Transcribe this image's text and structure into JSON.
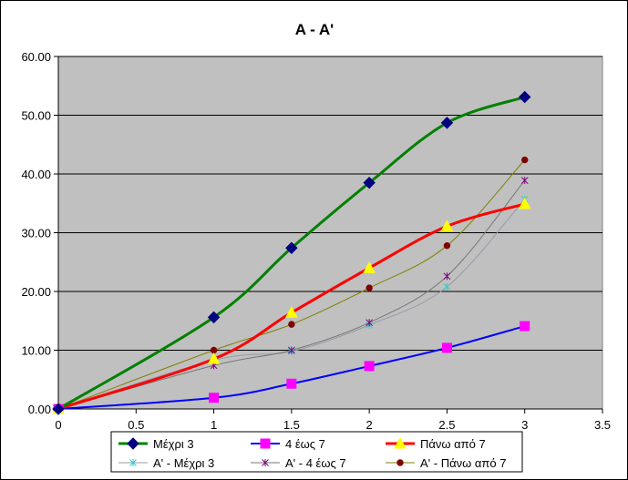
{
  "chart_data": {
    "type": "line",
    "title": "A - A'",
    "xlabel": "",
    "ylabel": "",
    "xlim": [
      0,
      3.5
    ],
    "ylim": [
      0,
      60
    ],
    "x_ticks": [
      "0",
      "0.5",
      "1",
      "1.5",
      "2",
      "2.5",
      "3",
      "3.5"
    ],
    "y_ticks": [
      "0.00",
      "10.00",
      "20.00",
      "30.00",
      "40.00",
      "50.00",
      "60.00"
    ],
    "grid": "horizontal",
    "plot_background": "#C0C0C0",
    "legend_position": "bottom",
    "series": [
      {
        "name": "Μέχρι 3",
        "color": "#008000",
        "marker": "diamond",
        "marker_color": "#000080",
        "width": 3,
        "x": [
          0,
          1,
          1.5,
          2,
          2.5,
          3
        ],
        "y": [
          0,
          15.6,
          27.4,
          38.5,
          48.7,
          53.1
        ]
      },
      {
        "name": "4 έως 7",
        "color": "#0000FF",
        "marker": "square",
        "marker_color": "#FF00FF",
        "width": 2,
        "x": [
          0,
          1,
          1.5,
          2,
          2.5,
          3
        ],
        "y": [
          0,
          1.9,
          4.3,
          7.3,
          10.4,
          14.1
        ]
      },
      {
        "name": "Πάνω από 7",
        "color": "#FF0000",
        "marker": "triangle",
        "marker_color": "#FFFF00",
        "width": 3,
        "x": [
          0,
          1,
          1.5,
          2,
          2.5,
          3
        ],
        "y": [
          0,
          8.5,
          16.4,
          24,
          31.1,
          34.9
        ]
      },
      {
        "name": "Α' - Μέχρι 3",
        "color": "#9999AA",
        "marker": "star",
        "marker_color": "#33CCCC",
        "width": 1,
        "x": [
          0,
          1,
          1.5,
          2,
          2.5,
          3
        ],
        "y": [
          0,
          8.3,
          9.8,
          14.3,
          20.8,
          35.7
        ]
      },
      {
        "name": "Α' - 4 έως 7",
        "color": "#777777",
        "marker": "star",
        "marker_color": "#800080",
        "width": 1,
        "x": [
          0,
          1,
          1.5,
          2,
          2.5,
          3
        ],
        "y": [
          0,
          7.4,
          10,
          14.7,
          22.6,
          38.9
        ]
      },
      {
        "name": "Α' - Πάνω από 7",
        "color": "#808000",
        "marker": "circle",
        "marker_color": "#800000",
        "width": 1,
        "x": [
          0,
          1,
          1.5,
          2,
          2.5,
          3
        ],
        "y": [
          0,
          10,
          14.4,
          20.6,
          27.8,
          42.4
        ]
      }
    ]
  }
}
